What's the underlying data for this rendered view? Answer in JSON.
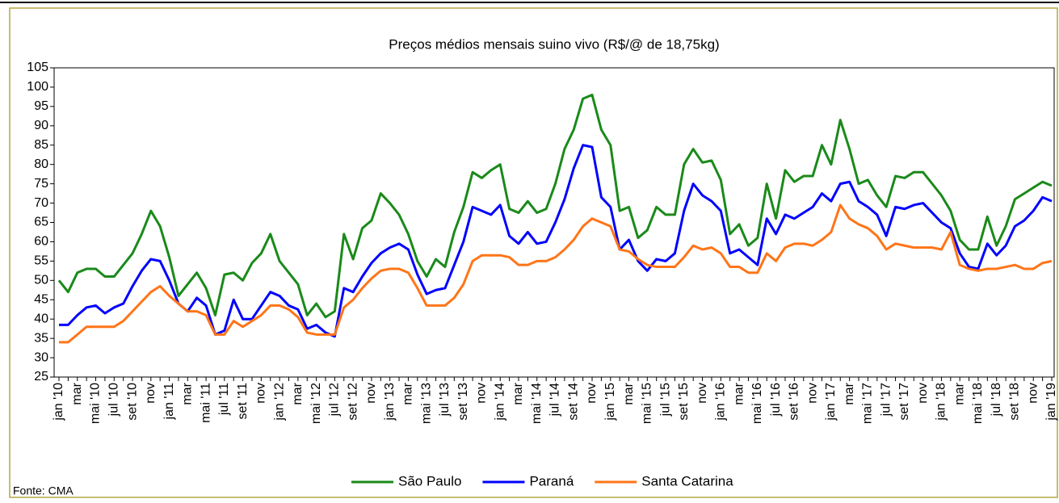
{
  "chart_data": {
    "type": "line",
    "title": "Preços médios mensais suino vivo (R$/@ de 18,75kg)",
    "source": "Fonte: CMA",
    "categories": [
      "jan '10",
      null,
      "mar",
      null,
      "mai '10",
      null,
      "jul '10",
      null,
      "set '10",
      null,
      "nov",
      null,
      "jan '11",
      null,
      "mar",
      null,
      "mai '11",
      null,
      "jul '11",
      null,
      "set '11",
      null,
      "nov",
      null,
      "jan '12",
      null,
      "mar",
      null,
      "mai '12",
      null,
      "jul '12",
      null,
      "set '12",
      null,
      "nov",
      null,
      "jan '13",
      null,
      "mar",
      null,
      "mai '13",
      null,
      "jul '13",
      null,
      "set '13",
      null,
      "nov",
      null,
      "jan '14",
      null,
      "mar",
      null,
      "mai '14",
      null,
      "jul '14",
      null,
      "set '14",
      null,
      "nov",
      null,
      "jan '15",
      null,
      "mar",
      null,
      "mai '15",
      null,
      "jul '15",
      null,
      "set '15",
      null,
      "nov",
      null,
      "jan '16",
      null,
      "mar",
      null,
      "mai '16",
      null,
      "jul '16",
      null,
      "set '16",
      null,
      "nov",
      null,
      "jan '17",
      null,
      "mar",
      null,
      "mai '17",
      null,
      "jul '17",
      null,
      "set '17",
      null,
      "nov",
      null,
      "jan '18",
      null,
      "mar",
      null,
      "mai '18",
      null,
      "jul '18",
      null,
      "set '18",
      null,
      "nov",
      null,
      "jan '19"
    ],
    "series": [
      {
        "name": "São Paulo",
        "color": "#1a8a1a",
        "values": [
          50,
          47,
          52,
          53,
          53,
          51,
          51,
          54,
          57,
          62,
          68,
          64,
          56,
          46,
          49,
          52,
          48,
          41,
          51.5,
          52,
          50,
          54.5,
          57,
          62,
          55,
          52,
          49,
          41,
          44,
          40.5,
          42,
          62,
          55.5,
          63.5,
          65.5,
          72.5,
          70,
          67,
          62,
          55,
          51,
          55.5,
          53.5,
          62.5,
          69,
          78,
          76.5,
          78.5,
          80,
          68.5,
          67.5,
          70.5,
          67.5,
          68.5,
          75,
          84,
          89,
          97,
          98,
          89,
          85,
          68,
          69,
          61,
          63,
          69,
          67,
          67,
          80,
          84,
          80.5,
          81,
          76,
          62,
          64.5,
          59,
          61,
          75,
          66,
          78.5,
          75.5,
          77,
          77,
          85,
          80,
          91.5,
          84,
          75,
          76,
          72,
          69,
          77,
          76.5,
          78,
          78,
          75,
          72,
          68,
          60.5,
          58,
          58,
          66.5,
          59,
          64,
          71,
          72.5,
          74,
          75.5,
          74.5
        ]
      },
      {
        "name": "Paraná",
        "color": "#0000ff",
        "values": [
          38.5,
          38.5,
          41,
          43,
          43.5,
          41.5,
          43,
          44,
          48.5,
          52.5,
          55.5,
          55,
          50,
          44,
          42,
          45.5,
          43.5,
          36,
          37,
          45,
          40,
          40,
          43.5,
          47,
          46,
          43.5,
          42.5,
          37.5,
          38.5,
          36.5,
          35.5,
          48,
          47,
          51,
          54.5,
          57,
          58.5,
          59.5,
          58,
          51.5,
          46.5,
          47.5,
          48,
          54,
          60,
          69,
          68,
          67,
          69.5,
          61.5,
          59.5,
          62.5,
          59.5,
          60,
          65,
          71,
          79,
          85,
          84.5,
          71.5,
          69,
          58,
          60.5,
          55,
          52.5,
          55.5,
          55,
          57,
          68,
          75,
          72,
          70.5,
          68,
          57,
          58,
          56,
          54,
          66,
          62,
          67,
          66,
          67.5,
          69,
          72.5,
          70.5,
          75,
          75.5,
          70.5,
          69,
          67,
          61.5,
          69,
          68.5,
          69.5,
          70,
          67.5,
          65,
          63.5,
          57,
          53.5,
          53,
          59.5,
          56.5,
          59,
          64,
          65.5,
          68,
          71.5,
          70.5
        ]
      },
      {
        "name": "Santa Catarina",
        "color": "#ff7518",
        "values": [
          34,
          34,
          36,
          38,
          38,
          38,
          38,
          39.5,
          42,
          44.5,
          47,
          48.5,
          46,
          44,
          42,
          42,
          41,
          36,
          36,
          39.5,
          38,
          39.5,
          41,
          43.5,
          43.5,
          42.5,
          40.5,
          36.5,
          36,
          36,
          36,
          43,
          45,
          48,
          50.5,
          52.5,
          53,
          53,
          52,
          48,
          43.5,
          43.5,
          43.5,
          45.5,
          49,
          55,
          56.5,
          56.5,
          56.5,
          56,
          54,
          54,
          55,
          55,
          56,
          58,
          60.5,
          64,
          66,
          65,
          64,
          58,
          57.5,
          55.5,
          54,
          53.5,
          53.5,
          53.5,
          56,
          59,
          58,
          58.5,
          57,
          53.5,
          53.5,
          52,
          52,
          57,
          55,
          58.5,
          59.5,
          59.5,
          59,
          60.5,
          62.5,
          69.5,
          66,
          64.5,
          63.5,
          61.5,
          58,
          59.5,
          59,
          58.5,
          58.5,
          58.5,
          58,
          62.5,
          54,
          53,
          52.5,
          53,
          53,
          53.5,
          54,
          53,
          53,
          54.5,
          55
        ]
      }
    ],
    "ylim": [
      25,
      105
    ],
    "yticks": [
      25,
      30,
      35,
      40,
      45,
      50,
      55,
      60,
      65,
      70,
      75,
      80,
      85,
      90,
      95,
      100,
      105
    ],
    "grid": false
  }
}
